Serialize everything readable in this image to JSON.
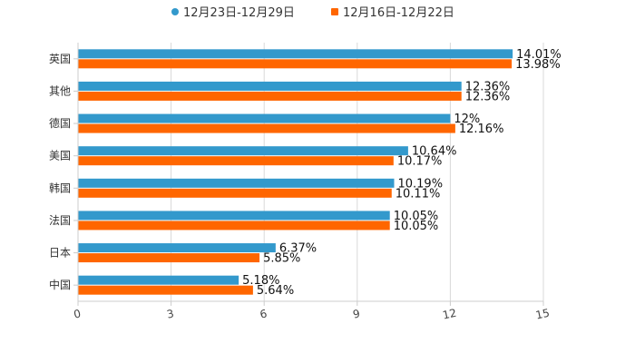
{
  "chart_data": {
    "type": "bar",
    "orientation": "horizontal",
    "title": "",
    "xlabel": "",
    "ylabel": "",
    "categories": [
      "英国",
      "其他",
      "德国",
      "美国",
      "韩国",
      "法国",
      "日本",
      "中国"
    ],
    "series": [
      {
        "name": "12月23日-12月29日",
        "color": "#3399cc",
        "values": [
          14.01,
          12.36,
          12,
          10.64,
          10.19,
          10.05,
          6.37,
          5.18
        ],
        "labels": [
          "14.01%",
          "12.36%",
          "12%",
          "10.64%",
          "10.19%",
          "10.05%",
          "6.37%",
          "5.18%"
        ]
      },
      {
        "name": "12月16日-12月22日",
        "color": "#ff6600",
        "values": [
          13.98,
          12.36,
          12.16,
          10.17,
          10.11,
          10.05,
          5.85,
          5.64
        ],
        "labels": [
          "13.98%",
          "12.36%",
          "12.16%",
          "10.17%",
          "10.11%",
          "10.05%",
          "5.85%",
          "5.64%"
        ]
      }
    ],
    "xlim": [
      0,
      15
    ],
    "xticks": [
      0,
      3,
      6,
      9,
      12,
      15
    ],
    "grid": true,
    "legend_position": "top-center"
  }
}
